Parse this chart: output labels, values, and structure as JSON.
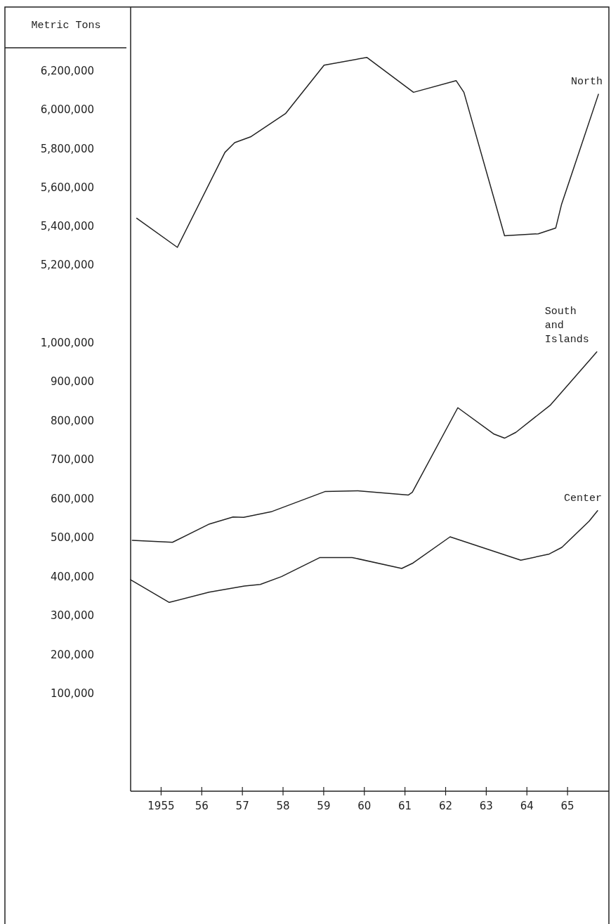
{
  "chart_data": [
    {
      "type": "line",
      "ylabel": "Metric Tons",
      "xlim": [
        1954.25,
        1966.0
      ],
      "ylim": [
        5000000,
        6530000
      ],
      "yticks": [
        {
          "value": 5200000,
          "label": "5,200,000"
        },
        {
          "value": 5400000,
          "label": "5,400,000"
        },
        {
          "value": 5600000,
          "label": "5,600,000"
        },
        {
          "value": 5800000,
          "label": "5,800,000"
        },
        {
          "value": 6000000,
          "label": "6,000,000"
        },
        {
          "value": 6200000,
          "label": "6,200,000"
        }
      ],
      "tick_labels": "y",
      "grid": false,
      "legend": false,
      "series": [
        {
          "name": "North",
          "color": "#222222",
          "x": [
            1954.4,
            1955.4,
            1956.57,
            1956.81,
            1957.2,
            1958.06,
            1959.01,
            1960.06,
            1961.21,
            1962.26,
            1962.45,
            1963.45,
            1964.28,
            1964.71,
            1964.85,
            1965.76
          ],
          "values": [
            5440000,
            5290000,
            5780000,
            5830000,
            5860000,
            5980000,
            6230000,
            6270000,
            6090000,
            6150000,
            6090000,
            5350000,
            5360000,
            5390000,
            5510000,
            6080000
          ]
        }
      ]
    },
    {
      "type": "line",
      "xlim": [
        1954.25,
        1966.0
      ],
      "xticks": [
        {
          "value": 1955,
          "label": "1955"
        },
        {
          "value": 1956,
          "label": "56"
        },
        {
          "value": 1957,
          "label": "57"
        },
        {
          "value": 1958,
          "label": "58"
        },
        {
          "value": 1959,
          "label": "59"
        },
        {
          "value": 1960,
          "label": "60"
        },
        {
          "value": 1961,
          "label": "61"
        },
        {
          "value": 1962,
          "label": "62"
        },
        {
          "value": 1963,
          "label": "63"
        },
        {
          "value": 1964,
          "label": "64"
        },
        {
          "value": 1965,
          "label": "65"
        }
      ],
      "ylim": [
        -150000,
        1100000
      ],
      "yticks": [
        {
          "value": 100000,
          "label": "100,000"
        },
        {
          "value": 200000,
          "label": "200,000"
        },
        {
          "value": 300000,
          "label": "300,000"
        },
        {
          "value": 400000,
          "label": "400,000"
        },
        {
          "value": 500000,
          "label": "500,000"
        },
        {
          "value": 600000,
          "label": "600,000"
        },
        {
          "value": 700000,
          "label": "700,000"
        },
        {
          "value": 800000,
          "label": "800,000"
        },
        {
          "value": 900000,
          "label": "900,000"
        },
        {
          "value": 1000000,
          "label": "1,000,000"
        }
      ],
      "grid": false,
      "legend": false,
      "series": [
        {
          "name": "South and Islands",
          "color": "#222222",
          "x": [
            1954.29,
            1955.28,
            1956.19,
            1956.77,
            1957.03,
            1957.73,
            1959.03,
            1959.84,
            1961.08,
            1961.18,
            1962.3,
            1963.18,
            1963.45,
            1963.73,
            1964.57,
            1965.72
          ],
          "values": [
            493000,
            488000,
            535000,
            553000,
            552000,
            567000,
            618000,
            620000,
            609000,
            616000,
            833000,
            766000,
            755000,
            770000,
            839000,
            976000
          ]
        },
        {
          "name": "Center",
          "color": "#222222",
          "x": [
            1954.25,
            1955.2,
            1956.18,
            1957.05,
            1957.44,
            1957.96,
            1958.91,
            1959.7,
            1960.92,
            1961.2,
            1962.11,
            1963.85,
            1964.55,
            1964.86,
            1965.53,
            1965.74
          ],
          "values": [
            392000,
            334000,
            360000,
            376000,
            380000,
            400000,
            449000,
            449000,
            421000,
            435000,
            502000,
            442000,
            458000,
            475000,
            542000,
            569000
          ]
        }
      ]
    }
  ]
}
